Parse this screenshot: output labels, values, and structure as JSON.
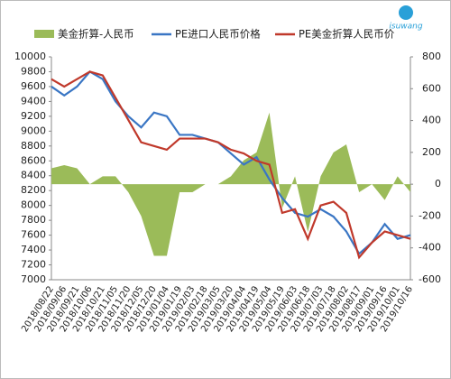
{
  "brand": "isuwang",
  "chart_data": {
    "type": "line",
    "categories": [
      "2018/08/22",
      "2018/09/06",
      "2018/09/21",
      "2018/10/06",
      "2018/10/21",
      "2018/11/05",
      "2018/11/20",
      "2018/12/05",
      "2018/12/20",
      "2019/01/04",
      "2019/01/19",
      "2019/02/03",
      "2019/02/18",
      "2019/03/05",
      "2019/03/20",
      "2019/04/04",
      "2019/04/19",
      "2019/05/04",
      "2019/05/19",
      "2019/06/03",
      "2019/06/18",
      "2019/07/03",
      "2019/07/18",
      "2019/08/02",
      "2019/08/17",
      "2019/09/01",
      "2019/09/16",
      "2019/10/01",
      "2019/10/16"
    ],
    "series": [
      {
        "name": "美金折算-人民币",
        "type": "area",
        "axis": "y2",
        "color": "#9bbb59",
        "values": [
          100,
          120,
          100,
          0,
          50,
          50,
          -50,
          -200,
          -450,
          -450,
          -50,
          -50,
          0,
          0,
          50,
          150,
          200,
          450,
          -150,
          50,
          -300,
          50,
          200,
          250,
          -50,
          0,
          -100,
          50,
          -50
        ]
      },
      {
        "name": "PE进口人民币价格",
        "type": "line",
        "color": "#3a76c4",
        "values": [
          9600,
          9480,
          9600,
          9800,
          9700,
          9400,
          9200,
          9050,
          9250,
          9200,
          8950,
          8950,
          8900,
          8850,
          8700,
          8550,
          8650,
          8350,
          8100,
          7900,
          7850,
          7950,
          7850,
          7650,
          7350,
          7500,
          7750,
          7550,
          7600
        ]
      },
      {
        "name": "PE美金折算人民币价",
        "type": "line",
        "color": "#c0392b",
        "values": [
          9700,
          9600,
          9700,
          9800,
          9750,
          9450,
          9150,
          8850,
          8800,
          8750,
          8900,
          8900,
          8900,
          8850,
          8750,
          8700,
          8600,
          8550,
          7900,
          7950,
          7550,
          8000,
          8050,
          7900,
          7300,
          7500,
          7650,
          7600,
          7550
        ]
      }
    ],
    "ylim": [
      7000,
      10000
    ],
    "yticks": [
      7000,
      7200,
      7400,
      7600,
      7800,
      8000,
      8200,
      8400,
      8600,
      8800,
      9000,
      9200,
      9400,
      9600,
      9800,
      10000
    ],
    "y2lim": [
      -600,
      800
    ],
    "y2ticks": [
      -600,
      -400,
      -200,
      0,
      200,
      400,
      600,
      800
    ]
  }
}
